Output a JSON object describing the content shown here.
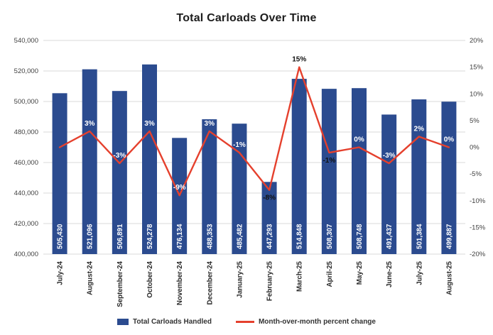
{
  "chart_data": {
    "type": "combo",
    "title": "Total Carloads Over Time",
    "categories": [
      "July-24",
      "August-24",
      "September-24",
      "October-24",
      "November-24",
      "December-24",
      "January-25",
      "February-25",
      "March-25",
      "April-25",
      "May-25",
      "June-25",
      "July-25",
      "August-25"
    ],
    "series": [
      {
        "name": "Total Carloads Handled",
        "type": "bar",
        "axis": "left",
        "color": "#2b4b8f",
        "values": [
          505430,
          521096,
          506891,
          524278,
          476134,
          488353,
          485482,
          447293,
          514848,
          508307,
          508748,
          491437,
          501384,
          499887
        ],
        "labels": [
          "505,430",
          "521,096",
          "506,891",
          "524,278",
          "476,134",
          "488,353",
          "485,482",
          "447,293",
          "514,848",
          "508,307",
          "508,748",
          "491,437",
          "501,384",
          "499,887"
        ]
      },
      {
        "name": "Month-over-month percent change",
        "type": "line",
        "axis": "right",
        "color": "#e5402d",
        "values": [
          0,
          3,
          -3,
          3,
          -9,
          3,
          -1,
          -8,
          15,
          -1,
          0,
          -3,
          2,
          0
        ],
        "labels": [
          null,
          "3%",
          "-3%",
          "3%",
          "-9%",
          "3%",
          "-1%",
          "-8%",
          "15%",
          "-1%",
          "0%",
          "-3%",
          "2%",
          "0%"
        ],
        "label_pos": [
          null,
          "above",
          "above",
          "above",
          "above",
          "above",
          "above",
          "below",
          "above",
          "below",
          "above",
          "above",
          "above",
          "above"
        ],
        "label_colors": [
          null,
          "#ffffff",
          "#ffffff",
          "#ffffff",
          "#ffffff",
          "#ffffff",
          "#ffffff",
          "#111111",
          "#111111",
          "#111111",
          "#ffffff",
          "#ffffff",
          "#ffffff",
          "#ffffff"
        ]
      }
    ],
    "left_axis": {
      "min": 400000,
      "max": 540000,
      "step": 20000,
      "tick_labels": [
        "540,000",
        "520,000",
        "500,000",
        "480,000",
        "460,000",
        "440,000",
        "420,000",
        "400,000"
      ]
    },
    "right_axis": {
      "min": -20,
      "max": 20,
      "step": 5,
      "tick_labels": [
        "20%",
        "15%",
        "10%",
        "5%",
        "0%",
        "-5%",
        "-10%",
        "-15%",
        "-20%"
      ]
    },
    "grid": true,
    "legend_position": "bottom",
    "colors": {
      "grid": "#d9d9d9",
      "tick_text": "#404040"
    }
  }
}
